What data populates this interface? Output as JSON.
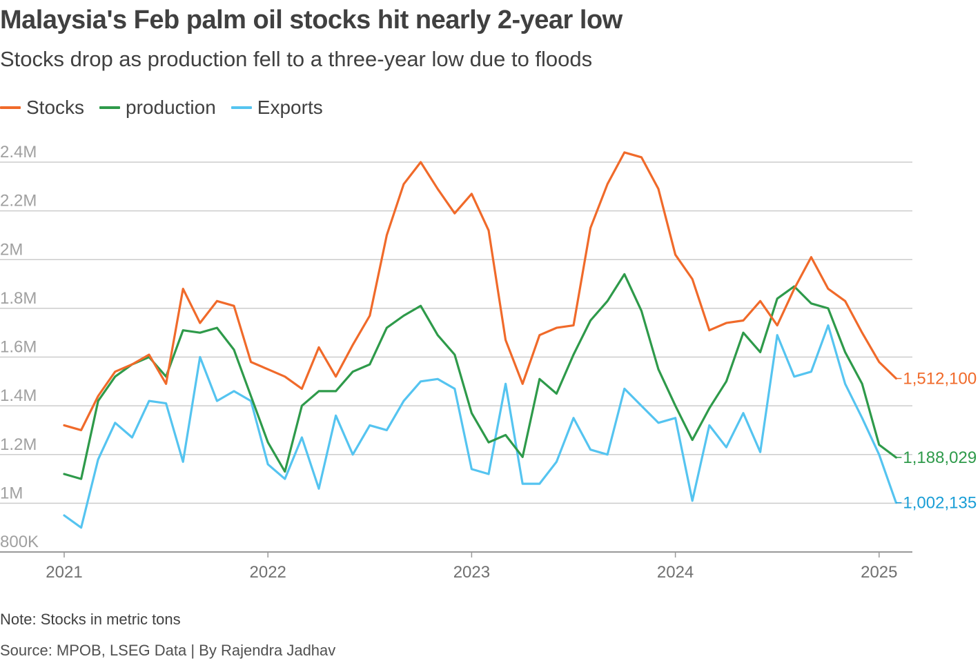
{
  "header": {
    "title": "Malaysia's Feb palm oil stocks hit nearly 2-year low",
    "subtitle": "Stocks drop as production fell to a three-year low due to floods"
  },
  "footer": {
    "note": "Note: Stocks in metric tons",
    "source": "Source: MPOB, LSEG Data | By Rajendra Jadhav"
  },
  "colors": {
    "stocks": "#f06a2a",
    "production": "#2e9a4a",
    "exports": "#55c4f0",
    "exports_label": "#1a9ed6",
    "grid": "#cccccc",
    "axis": "#999999"
  },
  "chart_data": {
    "type": "line",
    "title": "Malaysia's Feb palm oil stocks hit nearly 2-year low",
    "subtitle": "Stocks drop as production fell to a three-year low due to floods",
    "x": [
      "2021-01",
      "2021-02",
      "2021-03",
      "2021-04",
      "2021-05",
      "2021-06",
      "2021-07",
      "2021-08",
      "2021-09",
      "2021-10",
      "2021-11",
      "2021-12",
      "2022-01",
      "2022-02",
      "2022-03",
      "2022-04",
      "2022-05",
      "2022-06",
      "2022-07",
      "2022-08",
      "2022-09",
      "2022-10",
      "2022-11",
      "2022-12",
      "2023-01",
      "2023-02",
      "2023-03",
      "2023-04",
      "2023-05",
      "2023-06",
      "2023-07",
      "2023-08",
      "2023-09",
      "2023-10",
      "2023-11",
      "2023-12",
      "2024-01",
      "2024-02",
      "2024-03",
      "2024-04",
      "2024-05",
      "2024-06",
      "2024-07",
      "2024-08",
      "2024-09",
      "2024-10",
      "2024-11",
      "2024-12",
      "2025-01",
      "2025-02"
    ],
    "x_ticks": [
      "2021",
      "2022",
      "2023",
      "2024",
      "2025"
    ],
    "y_ticks": [
      "800K",
      "1M",
      "1.2M",
      "1.4M",
      "1.6M",
      "1.8M",
      "2M",
      "2.2M",
      "2.4M"
    ],
    "y_tick_values": [
      800000,
      1000000,
      1200000,
      1400000,
      1600000,
      1800000,
      2000000,
      2200000,
      2400000
    ],
    "ylim": [
      800000,
      2450000
    ],
    "legend_position": "top-left",
    "grid": "horizontal",
    "series": [
      {
        "name": "Stocks",
        "key": "stocks",
        "end_label": "1,512,100",
        "values": [
          1320000,
          1300000,
          1440000,
          1540000,
          1570000,
          1610000,
          1490000,
          1880000,
          1740000,
          1830000,
          1810000,
          1580000,
          1550000,
          1520000,
          1470000,
          1640000,
          1520000,
          1650000,
          1770000,
          2100000,
          2310000,
          2400000,
          2290000,
          2190000,
          2270000,
          2120000,
          1670000,
          1490000,
          1690000,
          1720000,
          1730000,
          2130000,
          2310000,
          2440000,
          2420000,
          2290000,
          2020000,
          1920000,
          1710000,
          1740000,
          1750000,
          1830000,
          1730000,
          1880000,
          2010000,
          1880000,
          1830000,
          1700000,
          1580000,
          1512100
        ]
      },
      {
        "name": "production",
        "key": "production",
        "end_label": "1,188,029",
        "values": [
          1120000,
          1100000,
          1420000,
          1520000,
          1570000,
          1600000,
          1520000,
          1710000,
          1700000,
          1720000,
          1630000,
          1440000,
          1250000,
          1130000,
          1400000,
          1460000,
          1460000,
          1540000,
          1570000,
          1720000,
          1770000,
          1810000,
          1690000,
          1610000,
          1370000,
          1250000,
          1280000,
          1190000,
          1510000,
          1450000,
          1610000,
          1750000,
          1830000,
          1940000,
          1790000,
          1550000,
          1400000,
          1260000,
          1390000,
          1500000,
          1700000,
          1620000,
          1840000,
          1890000,
          1820000,
          1800000,
          1620000,
          1490000,
          1240000,
          1188029
        ]
      },
      {
        "name": "Exports",
        "key": "exports",
        "end_label": "1,002,135",
        "values": [
          950000,
          900000,
          1180000,
          1330000,
          1270000,
          1420000,
          1410000,
          1170000,
          1600000,
          1420000,
          1460000,
          1420000,
          1160000,
          1100000,
          1270000,
          1060000,
          1360000,
          1200000,
          1320000,
          1300000,
          1420000,
          1500000,
          1510000,
          1470000,
          1140000,
          1120000,
          1490000,
          1080000,
          1080000,
          1170000,
          1350000,
          1220000,
          1200000,
          1470000,
          1400000,
          1330000,
          1350000,
          1010000,
          1320000,
          1230000,
          1370000,
          1210000,
          1690000,
          1520000,
          1540000,
          1730000,
          1490000,
          1350000,
          1200000,
          1002135
        ]
      }
    ]
  }
}
